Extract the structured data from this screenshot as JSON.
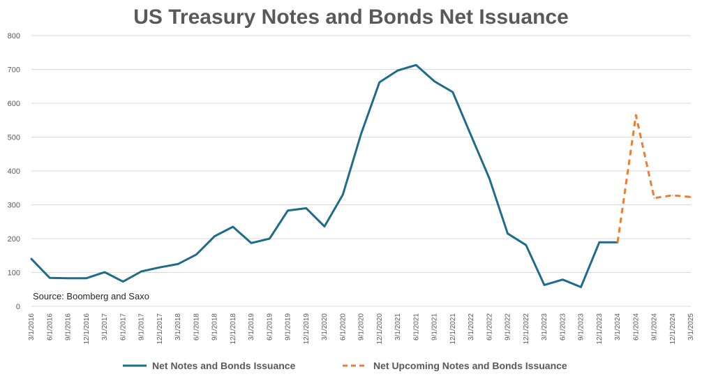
{
  "chart_data": {
    "type": "line",
    "title": "US Treasury Notes and Bonds Net Issuance",
    "xlabel": "",
    "ylabel": "",
    "ylim": [
      0,
      800
    ],
    "yticks": [
      "0",
      "100",
      "200",
      "300",
      "400",
      "500",
      "600",
      "700",
      "800"
    ],
    "categories": [
      "3/1/2016",
      "6/1/2016",
      "9/1/2016",
      "12/1/2016",
      "3/1/2017",
      "6/1/2017",
      "9/1/2017",
      "12/1/2017",
      "3/1/2018",
      "6/1/2018",
      "9/1/2018",
      "12/1/2018",
      "3/1/2019",
      "6/1/2019",
      "9/1/2019",
      "12/1/2019",
      "3/1/2020",
      "6/1/2020",
      "9/1/2020",
      "12/1/2020",
      "3/1/2021",
      "6/1/2021",
      "9/1/2021",
      "12/1/2021",
      "3/1/2022",
      "6/1/2022",
      "9/1/2022",
      "12/1/2022",
      "3/1/2023",
      "6/1/2023",
      "9/1/2023",
      "12/1/2023",
      "3/1/2024",
      "6/1/2024",
      "9/1/2024",
      "12/1/2024",
      "3/1/2025"
    ],
    "series": [
      {
        "name": "Net Notes and Bonds Issuance",
        "color": "#1f6b8a",
        "style": "solid",
        "values": [
          140,
          84,
          83,
          83,
          101,
          73,
          103,
          115,
          125,
          153,
          207,
          235,
          187,
          200,
          283,
          290,
          236,
          330,
          510,
          662,
          697,
          713,
          665,
          633,
          505,
          378,
          215,
          181,
          63,
          79,
          57,
          189,
          189,
          null,
          null,
          null,
          null
        ]
      },
      {
        "name": "Net Upcoming Notes and Bonds Issuance",
        "color": "#ed7d31",
        "style": "dashed",
        "values": [
          null,
          null,
          null,
          null,
          null,
          null,
          null,
          null,
          null,
          null,
          null,
          null,
          null,
          null,
          null,
          null,
          null,
          null,
          null,
          null,
          null,
          null,
          null,
          null,
          null,
          null,
          null,
          null,
          null,
          null,
          null,
          null,
          189,
          565,
          320,
          328,
          323
        ]
      }
    ],
    "annotation": "Source: Boomberg and Saxo",
    "grid": true,
    "legend_position": "bottom"
  }
}
